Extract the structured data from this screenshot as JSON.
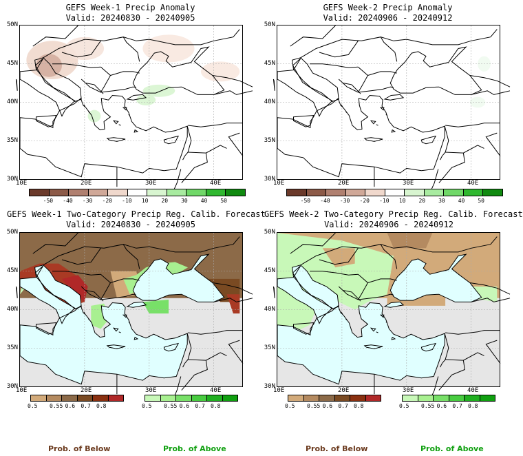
{
  "panels": [
    {
      "title": "GEFS Week-1 Precip Anomaly",
      "valid": "Valid: 20240830 - 20240905",
      "kind": "anom"
    },
    {
      "title": "GEFS Week-2 Precip Anomaly",
      "valid": "Valid: 20240906 - 20240912",
      "kind": "anom"
    },
    {
      "title": "GEFS Week-1 Two-Category Precip Reg. Calib. Forecast",
      "valid": "Valid: 20240830 - 20240905",
      "kind": "prob"
    },
    {
      "title": "GEFS Week-2 Two-Category Precip Reg. Calib. Forecast",
      "valid": "Valid: 20240906 - 20240912",
      "kind": "prob"
    }
  ],
  "lat_labels": [
    "50N",
    "45N",
    "40N",
    "35N",
    "30N"
  ],
  "lon_labels": [
    "10E",
    "20E",
    "30E",
    "40E"
  ],
  "anom_colorbar": {
    "labels": [
      "-50",
      "-40",
      "-30",
      "-20",
      "-10",
      "10",
      "20",
      "30",
      "40",
      "50"
    ],
    "colors": [
      "#6b3a2b",
      "#8c5a48",
      "#b08070",
      "#d0a898",
      "#f0d8cc",
      "#ffffff",
      "#d8f5d0",
      "#a8eba0",
      "#70d868",
      "#30b830",
      "#108a10"
    ]
  },
  "below_colorbar": {
    "labels": [
      "0.5",
      "0.55",
      "0.6",
      "0.7",
      "0.8"
    ],
    "colors": [
      "#d2aa7a",
      "#b48a60",
      "#8c6a48",
      "#7a4a22",
      "#8a3010",
      "#b02828"
    ]
  },
  "above_colorbar": {
    "labels": [
      "0.5",
      "0.55",
      "0.6",
      "0.7",
      "0.8"
    ],
    "colors": [
      "#c8f8b8",
      "#a8f090",
      "#78e068",
      "#48cc40",
      "#20b020",
      "#10a010"
    ]
  },
  "legend_text": {
    "below": "Prob. of Below",
    "above": "Prob. of Above"
  },
  "colors": {
    "sea": "#e0ffff",
    "land_na": "#e6e6e6",
    "below_text": "#6b3a1e",
    "above_text": "#10a010"
  }
}
